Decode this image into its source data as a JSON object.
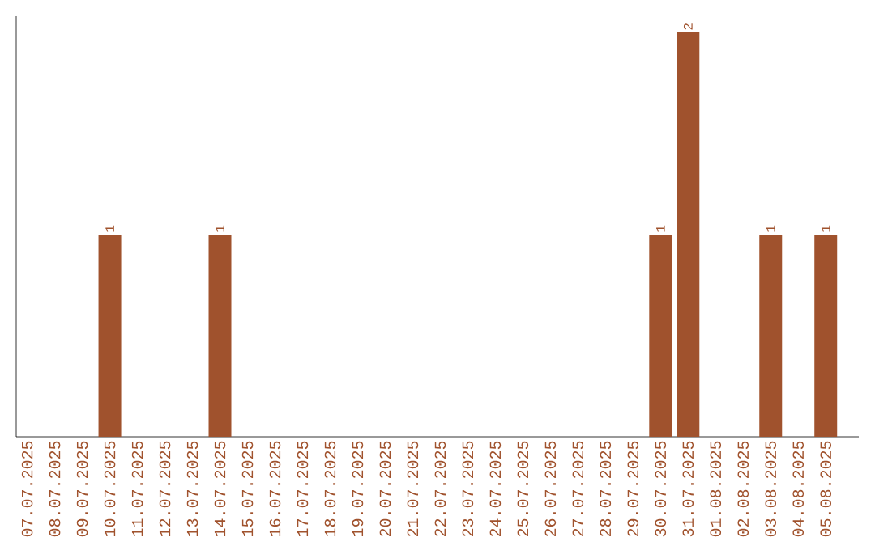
{
  "chart_data": {
    "type": "bar",
    "categories": [
      "07.07.2025",
      "08.07.2025",
      "09.07.2025",
      "10.07.2025",
      "11.07.2025",
      "12.07.2025",
      "13.07.2025",
      "14.07.2025",
      "15.07.2025",
      "16.07.2025",
      "17.07.2025",
      "18.07.2025",
      "19.07.2025",
      "20.07.2025",
      "21.07.2025",
      "22.07.2025",
      "23.07.2025",
      "24.07.2025",
      "25.07.2025",
      "26.07.2025",
      "27.07.2025",
      "28.07.2025",
      "29.07.2025",
      "30.07.2025",
      "31.07.2025",
      "01.08.2025",
      "02.08.2025",
      "03.08.2025",
      "04.08.2025",
      "05.08.2025"
    ],
    "values": [
      0,
      0,
      0,
      1,
      0,
      0,
      0,
      1,
      0,
      0,
      0,
      0,
      0,
      0,
      0,
      0,
      0,
      0,
      0,
      0,
      0,
      0,
      0,
      1,
      2,
      0,
      0,
      1,
      0,
      1
    ],
    "value_labels": [
      null,
      null,
      null,
      "1",
      null,
      null,
      null,
      "1",
      null,
      null,
      null,
      null,
      null,
      null,
      null,
      null,
      null,
      null,
      null,
      null,
      null,
      null,
      null,
      "1",
      "2",
      null,
      null,
      "1",
      null,
      "1"
    ],
    "color": "#a0522d",
    "grid": false,
    "tick_labels": "x"
  }
}
